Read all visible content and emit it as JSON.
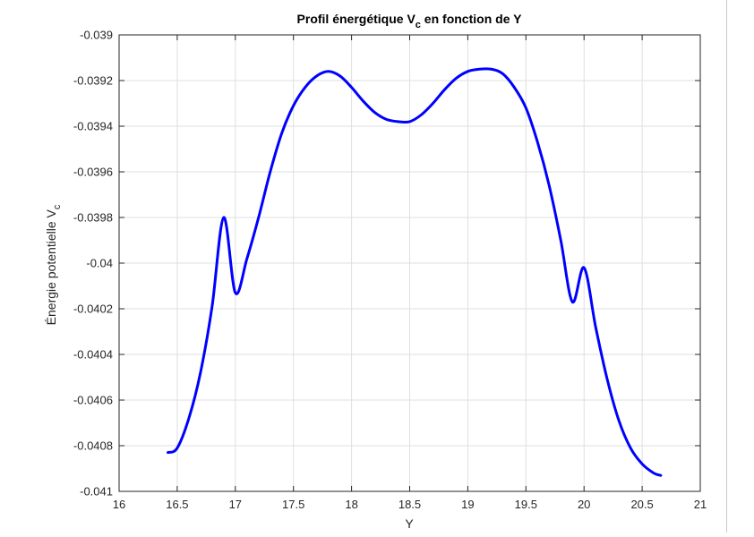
{
  "colors": {
    "background": "#ffffff",
    "line": "#0000ff",
    "grid": "#dfdfdf",
    "axes": "#262626"
  },
  "chart_data": {
    "type": "line",
    "title_main": "Profil énergétique V",
    "title_sub": "c",
    "title_tail": " en fonction de Y",
    "xlabel": "Y",
    "ylabel_main": "Énergie potentielle V",
    "ylabel_sub": "c",
    "xlim": [
      16,
      21
    ],
    "ylim": [
      -0.041,
      -0.039
    ],
    "grid": true,
    "legend": "none",
    "x_ticks": [
      16,
      16.5,
      17,
      17.5,
      18,
      18.5,
      19,
      19.5,
      20,
      20.5,
      21
    ],
    "x_tick_labels": [
      "16",
      "16.5",
      "17",
      "17.5",
      "18",
      "18.5",
      "19",
      "19.5",
      "20",
      "20.5",
      "21"
    ],
    "y_ticks": [
      -0.039,
      -0.0392,
      -0.0394,
      -0.0396,
      -0.0398,
      -0.04,
      -0.0402,
      -0.0404,
      -0.0406,
      -0.0408,
      -0.041
    ],
    "y_tick_labels": [
      "-0.039",
      "-0.0392",
      "-0.0394",
      "-0.0396",
      "-0.0398",
      "-0.04",
      "-0.0402",
      "-0.0404",
      "-0.0406",
      "-0.0408",
      "-0.041"
    ],
    "series": [
      {
        "color": "#0000ff",
        "x": [
          16.42,
          16.5,
          16.6,
          16.7,
          16.8,
          16.9,
          17.0,
          17.1,
          17.2,
          17.3,
          17.4,
          17.5,
          17.6,
          17.7,
          17.8,
          17.9,
          18.0,
          18.1,
          18.2,
          18.3,
          18.4,
          18.5,
          18.6,
          18.7,
          18.8,
          18.9,
          19.0,
          19.1,
          19.2,
          19.3,
          19.4,
          19.5,
          19.6,
          19.7,
          19.8,
          19.9,
          20.0,
          20.1,
          20.2,
          20.3,
          20.4,
          20.5,
          20.6,
          20.66
        ],
        "y": [
          -0.04083,
          -0.04081,
          -0.04068,
          -0.04048,
          -0.04019,
          -0.0398,
          -0.04013,
          -0.03998,
          -0.0398,
          -0.0396,
          -0.03943,
          -0.03931,
          -0.03923,
          -0.03918,
          -0.03916,
          -0.03918,
          -0.03923,
          -0.03929,
          -0.03934,
          -0.03937,
          -0.03938,
          -0.03938,
          -0.03935,
          -0.0393,
          -0.03924,
          -0.03919,
          -0.03916,
          -0.03915,
          -0.03915,
          -0.03917,
          -0.03923,
          -0.03932,
          -0.03947,
          -0.03966,
          -0.0399,
          -0.04017,
          -0.04002,
          -0.04028,
          -0.04051,
          -0.04069,
          -0.04081,
          -0.04088,
          -0.04092,
          -0.04093
        ]
      }
    ]
  }
}
